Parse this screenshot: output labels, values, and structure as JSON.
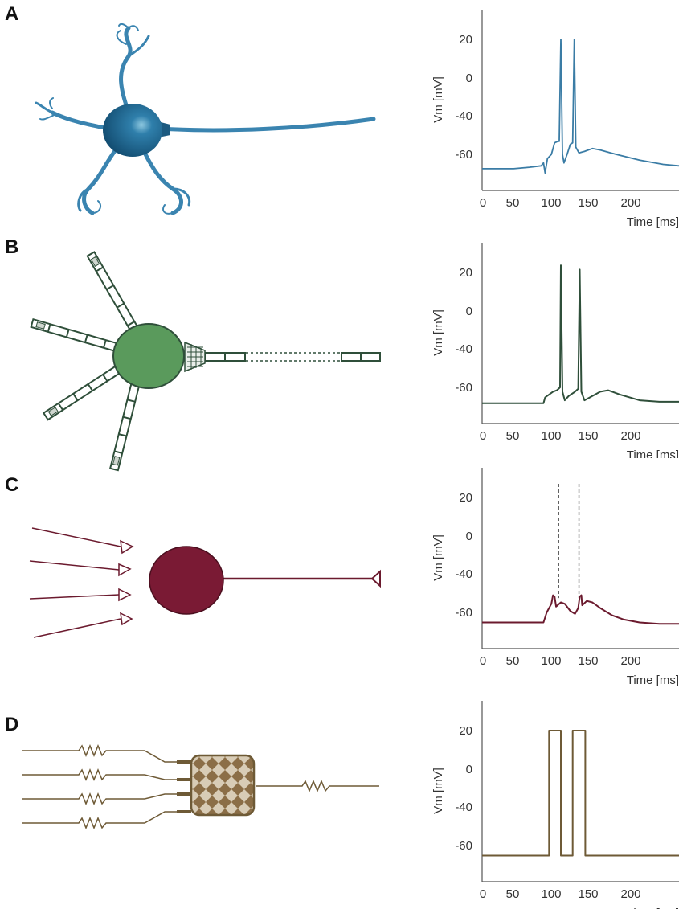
{
  "panels": [
    {
      "label": "A",
      "color": "#3a7ca5",
      "neuron": "biophysical-neuron-illustration"
    },
    {
      "label": "B",
      "color": "#2f4f3a",
      "fill": "#5a9a5c",
      "neuron": "compartmental-model-diagram"
    },
    {
      "label": "C",
      "color": "#6b1a2e",
      "fill": "#7a1a34",
      "neuron": "point-neuron-diagram"
    },
    {
      "label": "D",
      "color": "#6e5a36",
      "fill": "#8b6e47",
      "neuron": "electronic-circuit-diagram"
    }
  ],
  "axes": {
    "ylabel": "Vm [mV]",
    "xlabel": "Time [ms]",
    "yticks": [
      "20",
      "0",
      "-40",
      "-60"
    ],
    "xticks": [
      "0",
      "50",
      "100",
      "150",
      "200"
    ]
  }
}
